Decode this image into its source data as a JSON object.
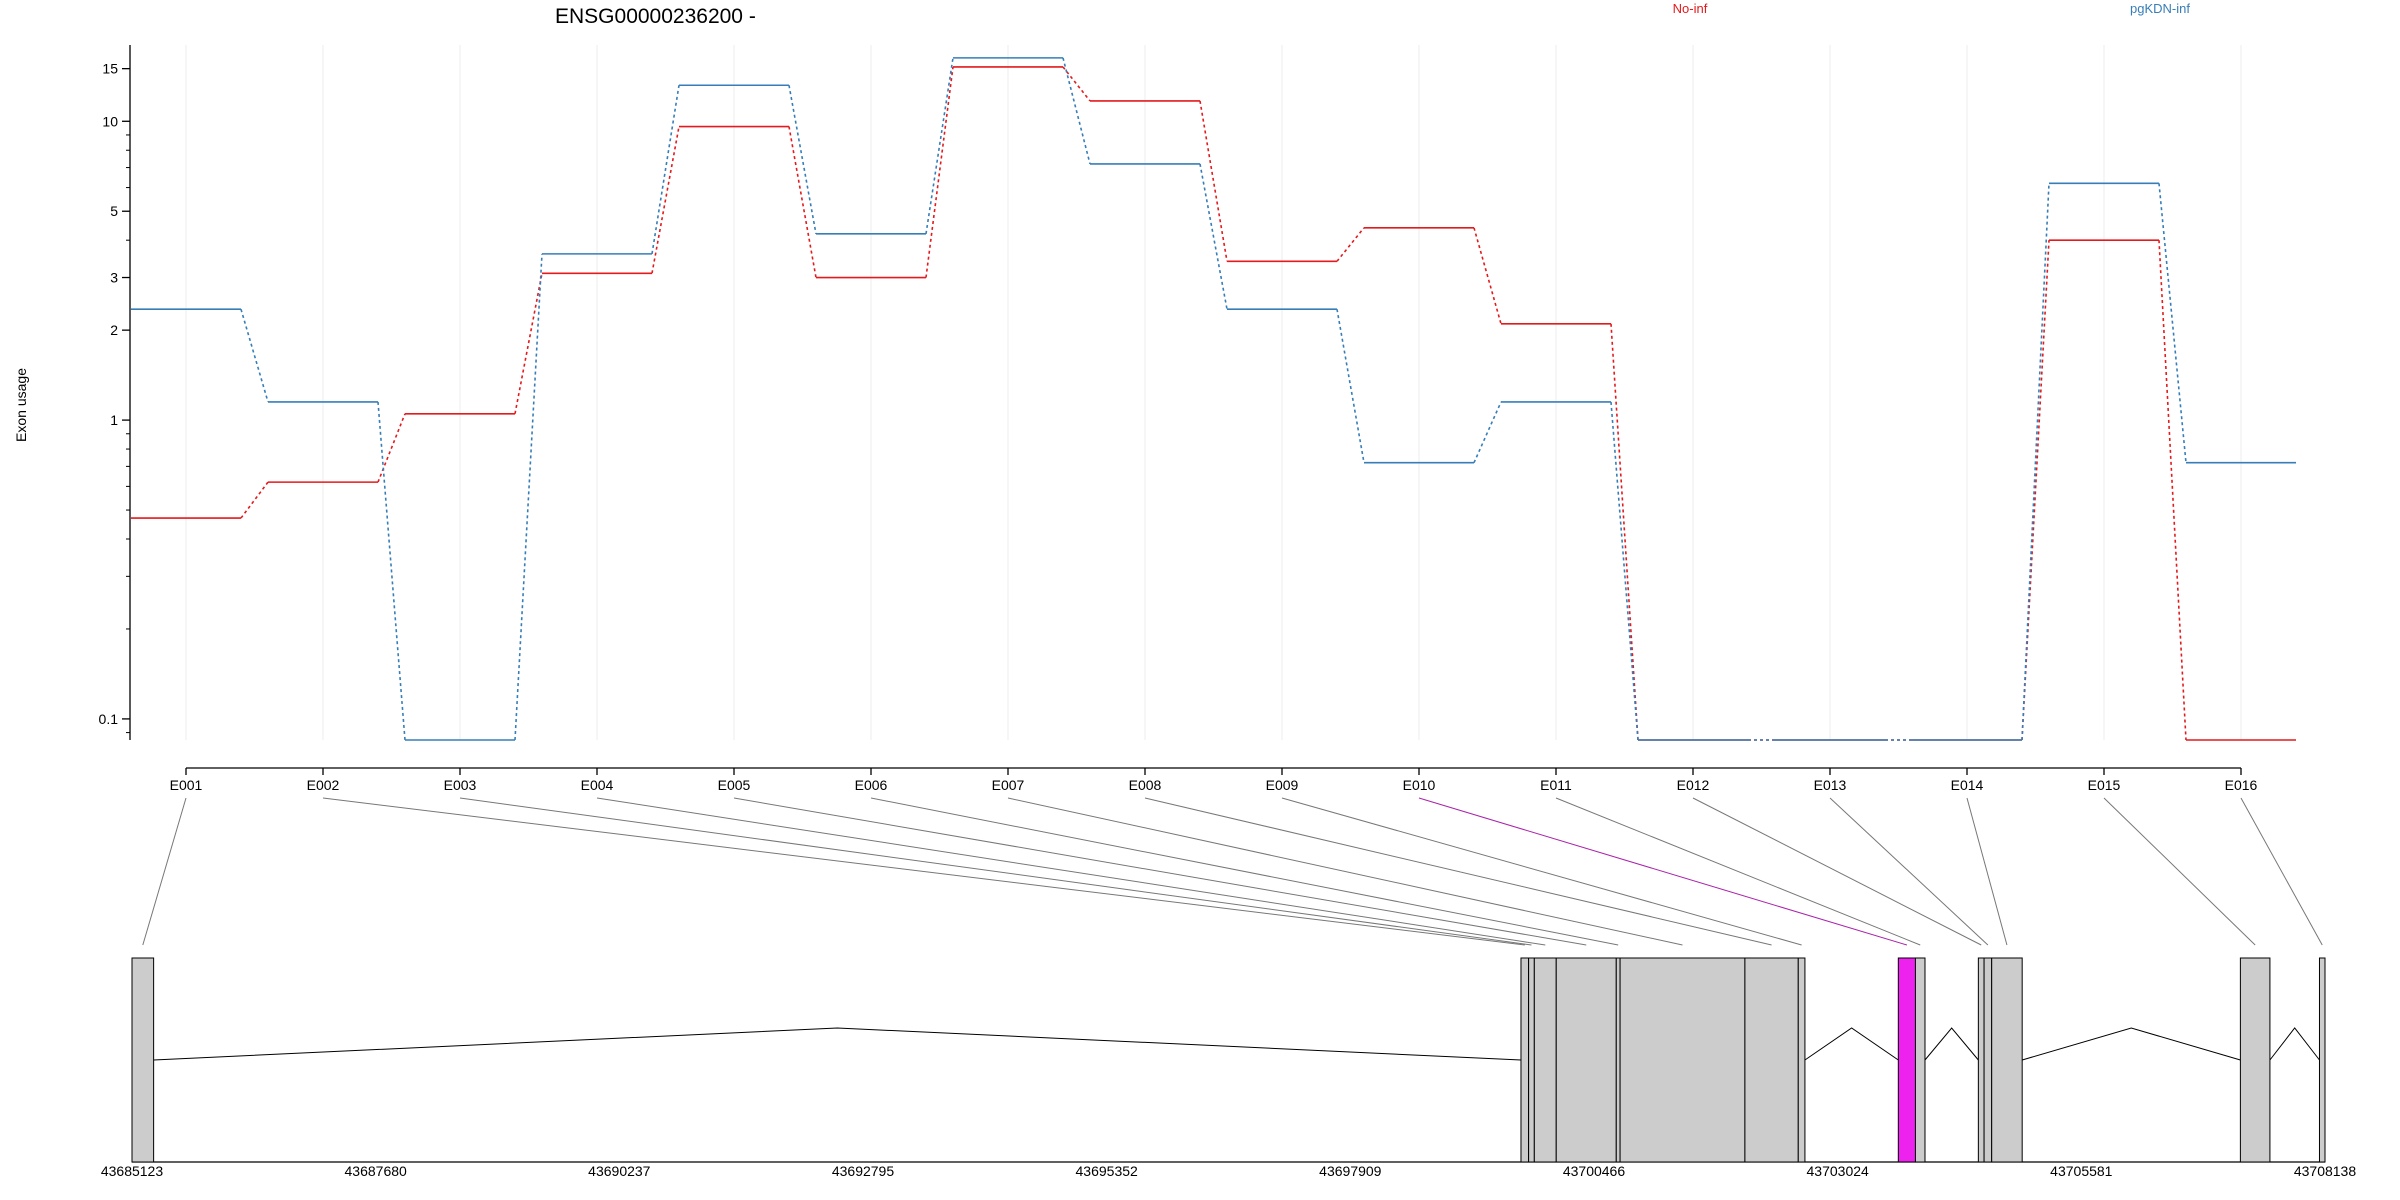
{
  "chart_data": {
    "type": "line",
    "title": "ENSG00000236200 -",
    "ylabel": "Exon usage",
    "xlabel": "",
    "yscale": "log",
    "ylim": [
      0.085,
      18
    ],
    "yticks": [
      {
        "value": 0.1,
        "label": "0.1"
      },
      {
        "value": 1,
        "label": "1"
      },
      {
        "value": 2,
        "label": "2"
      },
      {
        "value": 3,
        "label": "3"
      },
      {
        "value": 5,
        "label": "5"
      },
      {
        "value": 10,
        "label": "10"
      },
      {
        "value": 15,
        "label": "15"
      }
    ],
    "grid": true,
    "legend_placement": "top-right",
    "categories": [
      "E001",
      "E002",
      "E003",
      "E004",
      "E005",
      "E006",
      "E007",
      "E008",
      "E009",
      "E010",
      "E011",
      "E012",
      "E013",
      "E014",
      "E015",
      "E016"
    ],
    "series": [
      {
        "name": "No-inf",
        "color": "#e41a1c",
        "values": [
          0.47,
          0.62,
          1.05,
          3.1,
          9.6,
          3.0,
          15.2,
          11.7,
          3.4,
          4.4,
          2.1,
          0.085,
          0.085,
          0.085,
          4.0,
          0.085
        ]
      },
      {
        "name": "pgKDN-inf",
        "color": "#377eb8",
        "values": [
          2.35,
          1.15,
          0.085,
          3.6,
          13.2,
          4.2,
          16.3,
          7.2,
          2.35,
          0.72,
          1.15,
          0.085,
          0.085,
          0.085,
          6.2,
          0.72
        ]
      }
    ],
    "gene_model": {
      "coordinate_labels": [
        "43685123",
        "43687680",
        "43690237",
        "43692795",
        "43695352",
        "43697909",
        "43700466",
        "43703024",
        "43705581",
        "43708138"
      ],
      "coord_range": [
        43685123,
        43708138
      ],
      "highlighted_exon": "E010",
      "highlight_color": "#ee22ee",
      "exon_fill": "#cccccc",
      "exons": [
        {
          "id": "E001",
          "start": 43685123,
          "end": 43685350
        },
        {
          "id": "E002",
          "start": 43699700,
          "end": 43699780
        },
        {
          "id": "E003",
          "start": 43699780,
          "end": 43699840
        },
        {
          "id": "E004",
          "start": 43699840,
          "end": 43700070
        },
        {
          "id": "E005",
          "start": 43700070,
          "end": 43700700
        },
        {
          "id": "E006",
          "start": 43700700,
          "end": 43700740
        },
        {
          "id": "E007",
          "start": 43700740,
          "end": 43702050
        },
        {
          "id": "E008",
          "start": 43702050,
          "end": 43702610
        },
        {
          "id": "E009",
          "start": 43702610,
          "end": 43702680
        },
        {
          "id": "E010",
          "start": 43703660,
          "end": 43703840
        },
        {
          "id": "E011",
          "start": 43703840,
          "end": 43703940
        },
        {
          "id": "E012",
          "start": 43704500,
          "end": 43704560
        },
        {
          "id": "E013",
          "start": 43704560,
          "end": 43704640
        },
        {
          "id": "E014",
          "start": 43704640,
          "end": 43704960
        },
        {
          "id": "E015",
          "start": 43707250,
          "end": 43707560
        },
        {
          "id": "E016",
          "start": 43708080,
          "end": 43708138
        }
      ]
    }
  }
}
